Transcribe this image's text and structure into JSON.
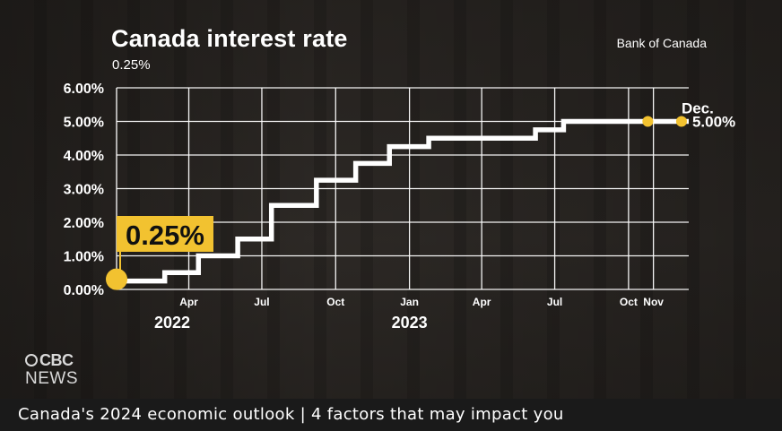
{
  "header": {
    "title": "Canada interest rate",
    "subtitle": "0.25%",
    "source": "Bank of Canada"
  },
  "logo": {
    "network": "CBC",
    "division": "NEWS",
    "icon": "cbc-gem-icon"
  },
  "banner": {
    "text": "Canada's 2024 economic outlook | 4 factors that may impact you"
  },
  "colors": {
    "line": "#ffffff",
    "accent": "#f2c230",
    "grid": "#ffffff",
    "text": "#ffffff"
  },
  "chart_data": {
    "type": "line",
    "step": true,
    "title": "Canada interest rate",
    "subtitle": "0.25%",
    "xlabel": "",
    "ylabel": "",
    "ylim": [
      0,
      6
    ],
    "xlim": [
      "2022-01-01",
      "2023-12-15"
    ],
    "grid": true,
    "y_ticks": [
      "0.00%",
      "1.00%",
      "2.00%",
      "3.00%",
      "4.00%",
      "5.00%",
      "6.00%"
    ],
    "x_ticks": [
      {
        "date": "2022-04-01",
        "label": "Apr"
      },
      {
        "date": "2022-07-01",
        "label": "Jul"
      },
      {
        "date": "2022-10-01",
        "label": "Oct"
      },
      {
        "date": "2023-01-01",
        "label": "Jan"
      },
      {
        "date": "2023-04-01",
        "label": "Apr"
      },
      {
        "date": "2023-07-01",
        "label": "Jul"
      },
      {
        "date": "2023-10-01",
        "label": "Oct"
      },
      {
        "date": "2023-11-01",
        "label": "Nov"
      }
    ],
    "year_labels": [
      {
        "date": "2022-01-01",
        "label": "2022"
      },
      {
        "date": "2023-01-01",
        "label": "2023"
      }
    ],
    "series": [
      {
        "values": [
          {
            "x": "2022-01-01",
            "y": 0.25
          },
          {
            "x": "2022-03-02",
            "y": 0.5
          },
          {
            "x": "2022-04-13",
            "y": 1.0
          },
          {
            "x": "2022-06-01",
            "y": 1.5
          },
          {
            "x": "2022-07-13",
            "y": 2.5
          },
          {
            "x": "2022-09-07",
            "y": 3.25
          },
          {
            "x": "2022-10-26",
            "y": 3.75
          },
          {
            "x": "2022-12-07",
            "y": 4.25
          },
          {
            "x": "2023-01-25",
            "y": 4.5
          },
          {
            "x": "2023-06-07",
            "y": 4.75
          },
          {
            "x": "2023-07-12",
            "y": 5.0
          },
          {
            "x": "2023-12-15",
            "y": 5.0
          }
        ]
      }
    ],
    "highlights": [
      {
        "x": "2022-01-01",
        "y": 0.25,
        "label": "0.25%",
        "style": "callout"
      },
      {
        "x": "2023-10-25",
        "y": 5.0,
        "label": "",
        "style": "dot"
      },
      {
        "x": "2023-12-06",
        "y": 5.0,
        "label": "Dec.",
        "value_label": "5.00%",
        "style": "end-label"
      }
    ]
  }
}
